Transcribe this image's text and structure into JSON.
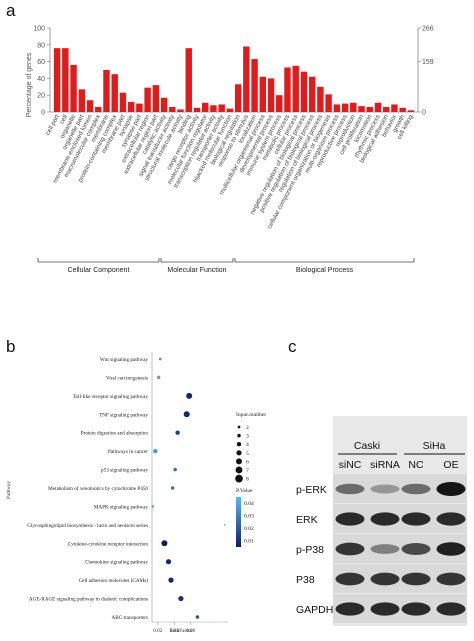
{
  "panel_a": {
    "letter": "a",
    "chart_data": {
      "type": "bar",
      "ylabel": "Percentage of genes",
      "ylim": [
        0,
        100
      ],
      "left_ticks": [
        "0",
        "20",
        "40",
        "60",
        "80",
        "100"
      ],
      "right_ticks": [
        "0",
        "159",
        "266"
      ],
      "categories": [
        "cell part",
        "cell",
        "organelle",
        "organelle part",
        "membrane-enclosed lumen",
        "macromolecular complex",
        "membrane",
        "protein-containing complex",
        "membrane part",
        "synapse",
        "synapse part",
        "extracellular region",
        "extracellular region part",
        "catalytic activity",
        "signal transducer activity",
        "structural molecule activity",
        "binding",
        "cargo receptor activity",
        "molecular function regulator",
        "transcription regulator activity",
        "transporter activity",
        "hijacked molecular function",
        "biological regulation",
        "response to stimulus",
        "localization",
        "multicellular organismal process",
        "developmental process",
        "immune system process",
        "metabolic process",
        "cellular process",
        "negative regulation of biological process",
        "positive regulation of biological process",
        "regulation of biological process",
        "cellular component organization or biogenesis",
        "multi-organism process",
        "reproductive process",
        "reproduction",
        "cell proliferation",
        "locomotion",
        "rhythmic process",
        "biological adhesion",
        "behavior",
        "growth",
        "cell killing"
      ],
      "values": [
        76,
        76,
        56,
        27,
        14,
        6,
        50,
        45,
        23,
        12,
        10,
        29,
        32,
        17,
        6,
        3,
        76,
        5,
        11,
        8,
        9,
        4,
        33,
        78,
        63,
        42,
        40,
        20,
        53,
        55,
        48,
        42,
        30,
        21,
        9,
        10,
        11,
        7,
        6,
        11,
        6,
        9,
        5,
        2
      ],
      "groups": [
        {
          "label": "Cellular Component",
          "count": 13
        },
        {
          "label": "Molecular Function",
          "count": 9
        },
        {
          "label": "Biological Process",
          "count": 22
        }
      ]
    }
  },
  "panel_b": {
    "letter": "b",
    "chart_data": {
      "type": "scatter",
      "ylabel": "Pathway",
      "xlabel": "RichFactor",
      "x_ticks": [
        "0.02",
        "0.04",
        "0.06"
      ],
      "pathways": [
        "Wnt signaling pathway",
        "Viral carcinogenesis",
        "Toll-like receptor signaling pathway",
        "TNF signaling pathway",
        "Protein digestion and absorption",
        "Pathways in cancer",
        "p53 signaling pathway",
        "Metabolism of xenobiotics by cytochrome P450",
        "MAPK signaling pathway",
        "Glycosphingolipid biosynthesis - lacto and neolacto series",
        "Cytokine-cytokine receptor interaction",
        "Chemokine signaling pathway",
        "Cell adhesion molecules (CAMs)",
        "AGE-RAGE signaling pathway in diabetic complications",
        "ABC transporters"
      ],
      "rich_factor": [
        0.023,
        0.021,
        0.058,
        0.055,
        0.044,
        0.017,
        0.041,
        0.038,
        0.014,
        0.101,
        0.028,
        0.033,
        0.036,
        0.048,
        0.068
      ],
      "input_number": [
        2,
        3,
        6,
        6,
        4,
        4,
        3,
        3,
        2,
        1,
        6,
        5,
        5,
        5,
        3
      ],
      "p_value": [
        0.04,
        0.045,
        0.008,
        0.008,
        0.015,
        0.04,
        0.03,
        0.03,
        0.045,
        0.05,
        0.005,
        0.008,
        0.008,
        0.01,
        0.02
      ],
      "size_legend_title": "Input.number",
      "size_legend": [
        "2",
        "3",
        "4",
        "5",
        "6",
        "7",
        "8"
      ],
      "color_legend_title": "P.Value",
      "color_legend": [
        "0.04",
        "0.03",
        "0.02",
        "0.01"
      ],
      "color_low": "#0d1f63",
      "color_high": "#5ab8f5"
    }
  },
  "panel_c": {
    "letter": "c",
    "cell_lines": [
      "Caski",
      "SiHa"
    ],
    "lanes": [
      "siNC",
      "siRNA",
      "NC",
      "OE"
    ],
    "proteins": [
      "p-ERK",
      "ERK",
      "p-P38",
      "P38",
      "GAPDH"
    ],
    "band_intensity": [
      [
        0.55,
        0.35,
        0.55,
        0.95
      ],
      [
        0.85,
        0.85,
        0.85,
        0.85
      ],
      [
        0.8,
        0.45,
        0.7,
        0.9
      ],
      [
        0.8,
        0.8,
        0.8,
        0.8
      ],
      [
        0.85,
        0.85,
        0.85,
        0.85
      ]
    ]
  }
}
